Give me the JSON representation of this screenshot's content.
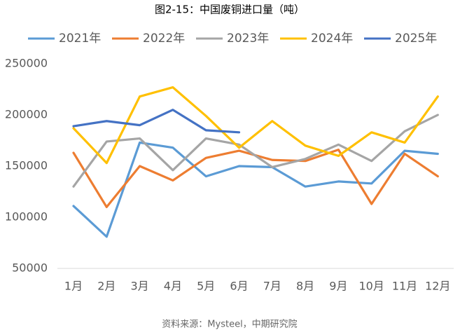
{
  "chart_data": {
    "type": "line",
    "title": "图2-15：中国废铜进口量（吨）",
    "source": "资料来源：Mysteel，中期研究院",
    "categories": [
      "1月",
      "2月",
      "3月",
      "4月",
      "5月",
      "6月",
      "7月",
      "8月",
      "9月",
      "10月",
      "11月",
      "12月"
    ],
    "series": [
      {
        "name": "2021年",
        "color": "#5b9bd5",
        "values": [
          111000,
          81000,
          173000,
          168000,
          140000,
          150000,
          149000,
          130000,
          135000,
          133000,
          165000,
          162000
        ]
      },
      {
        "name": "2022年",
        "color": "#ed7d31",
        "values": [
          163000,
          110000,
          150000,
          136000,
          158000,
          165000,
          156000,
          155000,
          166000,
          113000,
          162000,
          140000
        ]
      },
      {
        "name": "2023年",
        "color": "#a5a5a5",
        "values": [
          130000,
          174000,
          177000,
          146000,
          177000,
          171000,
          149000,
          157000,
          171000,
          155000,
          184000,
          200000
        ]
      },
      {
        "name": "2024年",
        "color": "#ffc000",
        "values": [
          187000,
          153000,
          218000,
          227000,
          199000,
          168000,
          194000,
          170000,
          160000,
          183000,
          173000,
          218000
        ]
      },
      {
        "name": "2025年",
        "color": "#4472c4",
        "values": [
          189000,
          194000,
          190000,
          205000,
          185000,
          183000,
          null,
          null,
          null,
          null,
          null,
          null
        ]
      }
    ],
    "ylim": [
      50000,
      250000
    ],
    "yticks": [
      50000,
      100000,
      150000,
      200000,
      250000
    ],
    "grid": false,
    "legend": "top"
  }
}
